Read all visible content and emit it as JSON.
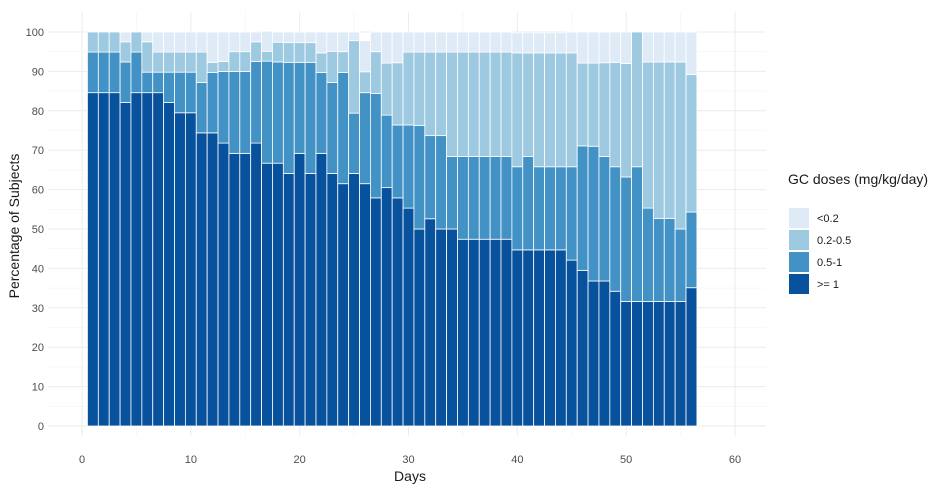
{
  "chart_data": {
    "type": "bar",
    "stacked": true,
    "xlabel": "Days",
    "ylabel": "Percentage of Subjects",
    "xlim": [
      -3,
      63
    ],
    "ylim": [
      0,
      100
    ],
    "x_ticks": [
      0,
      10,
      20,
      30,
      40,
      50,
      60
    ],
    "y_ticks": [
      0,
      10,
      20,
      30,
      40,
      50,
      60,
      70,
      80,
      90,
      100
    ],
    "grid": true,
    "legend": {
      "title": "GC doses (mg/kg/day)",
      "position": "right",
      "entries": [
        {
          "label": "<0.2",
          "color": "#deebf7"
        },
        {
          "label": "0.2-0.5",
          "color": "#9ecae1"
        },
        {
          "label": "0.5-1",
          "color": "#4292c6"
        },
        {
          "label": ">= 1",
          "color": "#08519c"
        }
      ]
    },
    "days": [
      1,
      2,
      3,
      4,
      5,
      6,
      7,
      8,
      9,
      10,
      11,
      12,
      13,
      14,
      15,
      16,
      17,
      18,
      19,
      20,
      21,
      22,
      23,
      24,
      25,
      26,
      27,
      28,
      29,
      30,
      31,
      32,
      33,
      34,
      35,
      36,
      37,
      38,
      39,
      40,
      41,
      42,
      43,
      44,
      45,
      46,
      47,
      48,
      49,
      50,
      51,
      52,
      53,
      54,
      55,
      56
    ],
    "series": [
      {
        "name": ">= 1",
        "color": "#08519c",
        "values": [
          84.6,
          84.6,
          84.6,
          82.1,
          84.6,
          84.6,
          84.6,
          82.1,
          79.5,
          79.5,
          74.4,
          74.4,
          71.8,
          69.2,
          69.2,
          71.8,
          66.7,
          66.7,
          64.1,
          69.2,
          64.1,
          69.2,
          64.1,
          61.5,
          64.1,
          61.5,
          57.9,
          60.5,
          57.9,
          55.3,
          50.0,
          52.6,
          50.0,
          50.0,
          47.4,
          47.4,
          47.4,
          47.4,
          47.4,
          44.7,
          44.7,
          44.7,
          44.7,
          44.7,
          42.1,
          39.5,
          36.8,
          36.8,
          34.2,
          31.6,
          31.6,
          31.6,
          31.6,
          31.6,
          31.6,
          35.1
        ]
      },
      {
        "name": "0.5-1",
        "color": "#4292c6",
        "values": [
          10.3,
          10.3,
          10.3,
          10.3,
          10.3,
          5.2,
          5.2,
          7.7,
          10.3,
          10.3,
          12.8,
          15.3,
          18.2,
          20.8,
          20.8,
          20.7,
          25.9,
          25.7,
          28.2,
          23.1,
          28.2,
          20.5,
          23.1,
          28.2,
          15.3,
          23.1,
          26.5,
          18.4,
          18.5,
          21.1,
          26.3,
          21.1,
          23.7,
          18.4,
          21.0,
          21.0,
          21.0,
          21.0,
          21.0,
          21.1,
          23.7,
          21.1,
          21.1,
          21.1,
          23.7,
          31.6,
          34.2,
          31.6,
          31.6,
          31.6,
          34.2,
          23.7,
          21.1,
          21.1,
          18.4,
          19.2
        ]
      },
      {
        "name": "0.2-0.5",
        "color": "#9ecae1",
        "values": [
          5.1,
          5.1,
          5.1,
          5.1,
          5.1,
          7.7,
          5.1,
          5.1,
          5.1,
          5.1,
          7.7,
          2.6,
          2.5,
          5.0,
          5.0,
          5.0,
          2.5,
          5.0,
          5.0,
          5.0,
          5.0,
          5.0,
          7.9,
          5.3,
          18.4,
          5.3,
          10.6,
          13.2,
          15.8,
          18.5,
          18.6,
          21.2,
          21.2,
          26.5,
          26.5,
          26.5,
          26.5,
          26.5,
          26.5,
          28.9,
          26.3,
          28.9,
          28.9,
          28.9,
          28.9,
          21.0,
          21.1,
          23.8,
          26.5,
          28.8,
          34.2,
          37.1,
          39.7,
          39.7,
          42.4,
          34.9
        ]
      },
      {
        "name": "<0.2",
        "color": "#deebf7",
        "values": [
          0,
          0,
          0,
          2.5,
          0,
          2.5,
          5.1,
          5.1,
          5.1,
          5.1,
          5.1,
          7.7,
          7.5,
          5.0,
          5.0,
          2.5,
          5.1,
          2.6,
          2.7,
          2.7,
          2.7,
          5.3,
          4.9,
          5.0,
          2.2,
          7.9,
          5.0,
          7.9,
          7.8,
          5.1,
          5.1,
          5.1,
          5.1,
          5.1,
          5.1,
          5.1,
          5.1,
          5.1,
          5.1,
          5.1,
          5.1,
          5.1,
          5.1,
          5.1,
          5.3,
          7.9,
          7.9,
          7.8,
          7.7,
          8.0,
          0,
          7.6,
          7.6,
          7.6,
          7.6,
          10.8
        ]
      }
    ]
  }
}
